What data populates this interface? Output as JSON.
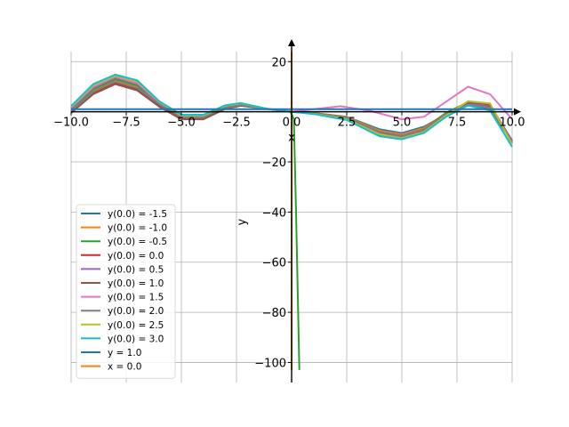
{
  "chart_data": {
    "type": "line",
    "title": "",
    "xlabel": "x",
    "ylabel": "y",
    "xlim": [
      -10.0,
      10.0
    ],
    "ylim": [
      -108,
      24
    ],
    "grid": true,
    "legend_position": "lower-left",
    "x_ticks": [
      -10.0,
      -7.5,
      -5.0,
      -2.5,
      0.0,
      2.5,
      5.0,
      7.5,
      10.0
    ],
    "x_tick_labels": [
      "−10.0",
      "−7.5",
      "−5.0",
      "−2.5",
      "0.0",
      "2.5",
      "5.0",
      "7.5",
      "10.0"
    ],
    "y_ticks": [
      20,
      0,
      -20,
      -40,
      -60,
      -80,
      -100
    ],
    "y_tick_labels": [
      "20",
      "",
      "−20",
      "−40",
      "−60",
      "−80",
      "−100"
    ],
    "series": [
      {
        "name": "y(0.0) = -1.5",
        "color": "#1f77b4",
        "x": [
          -10,
          -9,
          -8,
          -7,
          -6,
          -5,
          -4,
          -3,
          -2.3,
          -1,
          0,
          1,
          2.5,
          4,
          5,
          6,
          7,
          8,
          9,
          10
        ],
        "y": [
          0.5,
          8,
          12,
          9.5,
          3,
          -1.5,
          -1.5,
          1.5,
          2.5,
          1,
          0,
          -0.5,
          -2,
          -7,
          -8.5,
          -6,
          -1,
          2.5,
          1,
          -12
        ]
      },
      {
        "name": "y(0.0) = -1.0",
        "color": "#ff7f0e",
        "x": [
          -10,
          -9,
          -8,
          -7,
          -6,
          -5,
          -4,
          -3,
          -2.3,
          -1,
          0,
          1,
          2.5,
          4,
          5,
          6,
          7,
          8,
          9,
          10
        ],
        "y": [
          0.8,
          8.5,
          12.5,
          10,
          3,
          -1.8,
          -1.8,
          1.8,
          2.8,
          1,
          0,
          -0.5,
          -2.2,
          -7.5,
          -9,
          -6.5,
          -0.5,
          3.5,
          1.5,
          -11.5
        ]
      },
      {
        "name": "y(0.0) = -0.5",
        "color": "#2ca02c",
        "x": [
          -10,
          -9,
          -8,
          -7,
          -6,
          -5,
          -4,
          -3,
          -2.3,
          -1,
          0,
          1,
          2.5,
          4,
          5,
          6,
          7,
          8,
          9,
          10
        ],
        "y": [
          1.1,
          9,
          13,
          10.5,
          3,
          -2.1,
          -2.1,
          2.1,
          3.1,
          1,
          0,
          -0.6,
          -2.4,
          -8,
          -9.5,
          -7,
          -0.5,
          3.8,
          2,
          -11.5
        ]
      },
      {
        "name": "y(0.0) = 0.0",
        "color": "#d62728",
        "x": [
          -10,
          -9,
          -8,
          -7,
          -6,
          -5,
          -4,
          -3,
          -2.3,
          -1,
          0,
          1,
          2.5,
          4,
          5,
          6,
          7,
          8,
          9,
          10
        ],
        "y": [
          0,
          7.5,
          11.5,
          9,
          2.5,
          -2.5,
          -2.5,
          1.5,
          2.6,
          1,
          0,
          -0.6,
          -2.6,
          -8.5,
          -10,
          -7.5,
          -1,
          3.2,
          2.5,
          -11.5
        ]
      },
      {
        "name": "y(0.0) = 0.5",
        "color": "#9467bd",
        "x": [
          -10,
          -9,
          -8,
          -7,
          -6,
          -5,
          -4,
          -3,
          -2.3,
          -1,
          0,
          1,
          2.5,
          4,
          5,
          6,
          7,
          8,
          9,
          10
        ],
        "y": [
          1.4,
          9.5,
          13.5,
          11,
          3.5,
          -2.3,
          -2.3,
          2.3,
          3.2,
          1,
          0,
          -0.7,
          -2.8,
          -8.8,
          -10.2,
          -7.8,
          -1.2,
          3,
          2.8,
          -11.5
        ]
      },
      {
        "name": "y(0.0) = 1.0",
        "color": "#8c564b",
        "x": [
          -10,
          -9,
          -8,
          -7,
          -6,
          -5,
          -4,
          -3,
          -2.3,
          -1,
          0,
          1,
          2.5,
          4,
          5,
          6,
          7,
          8,
          9,
          10
        ],
        "y": [
          -0.5,
          7,
          11,
          8.5,
          2,
          -3,
          -3,
          1.2,
          2.4,
          1,
          0,
          -0.7,
          -3,
          -9.2,
          -10.5,
          -8,
          -1.5,
          3.8,
          3,
          -12.5
        ]
      },
      {
        "name": "y(0.0) = 1.5",
        "color": "#e377c2",
        "x": [
          -10,
          -9,
          -8,
          -7,
          -6,
          -5,
          -4,
          -3,
          -2.3,
          -1,
          0,
          1,
          2.2,
          3.5,
          5,
          6,
          7,
          8,
          9,
          10
        ],
        "y": [
          1.7,
          10,
          14,
          11.5,
          3.8,
          -1.8,
          -1.8,
          2,
          3,
          1,
          0,
          1,
          2.2,
          0.5,
          -3,
          -2,
          4,
          10,
          7,
          -3
        ]
      },
      {
        "name": "y(0.0) = 2.0",
        "color": "#7f7f7f",
        "x": [
          -10,
          -9,
          -8,
          -7,
          -6,
          -5,
          -4,
          -3,
          -2.3,
          -1,
          0,
          1,
          2.5,
          4,
          5,
          6,
          7,
          8,
          9,
          10
        ],
        "y": [
          0.3,
          8,
          12,
          9.5,
          3,
          -2,
          -2,
          1.7,
          2.7,
          1,
          0,
          -0.6,
          -2.5,
          -8,
          -9.5,
          -7,
          -0.8,
          2.8,
          1.8,
          -12
        ]
      },
      {
        "name": "y(0.0) = 2.5",
        "color": "#bcbd22",
        "x": [
          -10,
          -9,
          -8,
          -7,
          -6,
          -5,
          -4,
          -3,
          -2.3,
          -1,
          0,
          1,
          2.5,
          4,
          5,
          6,
          7,
          8,
          9,
          10
        ],
        "y": [
          2,
          10.5,
          14.3,
          12,
          4,
          -1.5,
          -1.5,
          2.4,
          3.3,
          1,
          0,
          -0.8,
          -3,
          -9,
          -10.5,
          -8,
          -1.5,
          4.2,
          3.3,
          -13
        ]
      },
      {
        "name": "y(0.0) = 3.0",
        "color": "#17becf",
        "x": [
          -10,
          -9,
          -8,
          -7,
          -6,
          -5,
          -4,
          -3,
          -2.3,
          -1,
          0,
          1,
          2.5,
          4,
          5,
          6,
          7,
          8,
          9,
          10
        ],
        "y": [
          2.3,
          11,
          14.8,
          12.5,
          4.2,
          -1.2,
          -1.2,
          2.6,
          3.5,
          1,
          0,
          -0.9,
          -3.3,
          -9.8,
          -11,
          -8.5,
          -2,
          2.5,
          0.5,
          -14
        ]
      },
      {
        "name": "y = 1.0",
        "color": "#1f77b4",
        "x": [
          -10,
          10
        ],
        "y": [
          1,
          1
        ]
      },
      {
        "name": "x = 0.0",
        "color": "#ff7f0e",
        "x": [
          0,
          0
        ],
        "y": [
          24,
          -103
        ]
      },
      {
        "name": "",
        "color": "#2ca02c",
        "x": [
          -0.05,
          0.1,
          0.2,
          0.35
        ],
        "y": [
          0,
          -3,
          -40,
          -103
        ]
      }
    ]
  }
}
